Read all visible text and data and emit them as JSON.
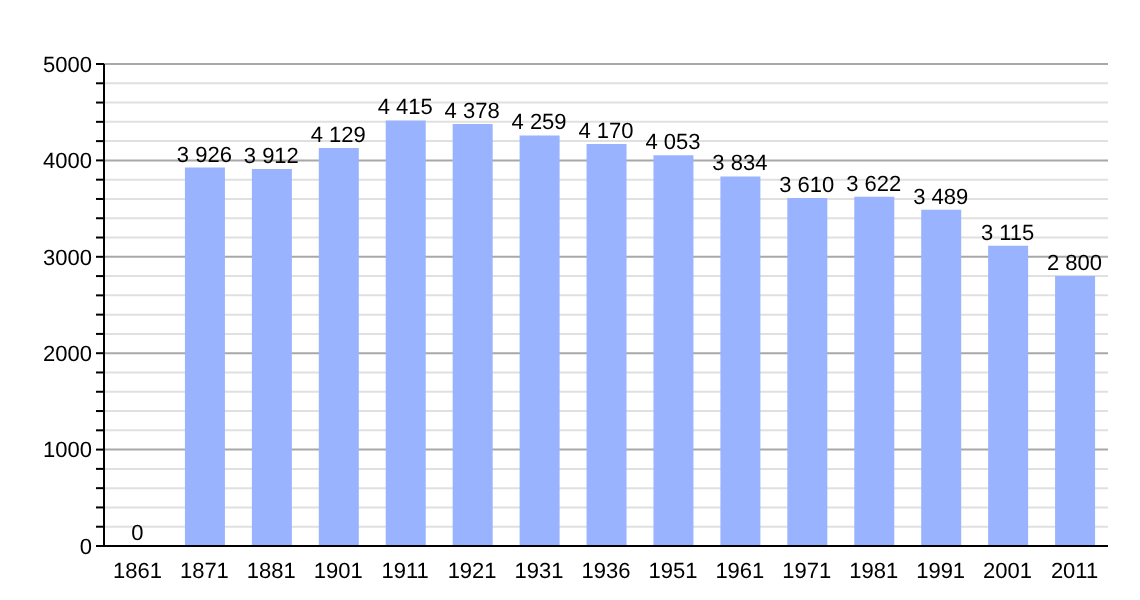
{
  "chart_data": {
    "type": "bar",
    "categories": [
      "1861",
      "1871",
      "1881",
      "1901",
      "1911",
      "1921",
      "1931",
      "1936",
      "1951",
      "1961",
      "1971",
      "1981",
      "1991",
      "2001",
      "2011"
    ],
    "values": [
      0,
      3926,
      3912,
      4129,
      4415,
      4378,
      4259,
      4170,
      4053,
      3834,
      3610,
      3622,
      3489,
      3115,
      2800
    ],
    "value_labels": [
      "0",
      "3 926",
      "3 912",
      "4 129",
      "4 415",
      "4 378",
      "4 259",
      "4 170",
      "4 053",
      "3 834",
      "3 610",
      "3 622",
      "3 489",
      "3 115",
      "2 800"
    ],
    "color": "#99b3ff",
    "ylim": [
      0,
      5000
    ],
    "yticks": [
      0,
      {
        "value": 200,
        "label": null
      },
      {
        "value": 400,
        "label": null
      },
      {
        "value": 600,
        "label": null
      },
      {
        "value": 800,
        "label": null
      },
      1000,
      {
        "value": 1200,
        "label": null
      },
      {
        "value": 1400,
        "label": null
      },
      {
        "value": 1600,
        "label": null
      },
      {
        "value": 1800,
        "label": null
      },
      2000,
      {
        "value": 2200,
        "label": null
      },
      {
        "value": 2400,
        "label": null
      },
      {
        "value": 2600,
        "label": null
      },
      {
        "value": 2800,
        "label": null
      },
      3000,
      {
        "value": 3200,
        "label": null
      },
      {
        "value": 3400,
        "label": null
      },
      {
        "value": 3600,
        "label": null
      },
      {
        "value": 3800,
        "label": null
      },
      4000,
      {
        "value": 4200,
        "label": null
      },
      {
        "value": 4400,
        "label": null
      },
      {
        "value": 4600,
        "label": null
      },
      {
        "value": 4800,
        "label": null
      },
      5000
    ],
    "grid": "y"
  }
}
